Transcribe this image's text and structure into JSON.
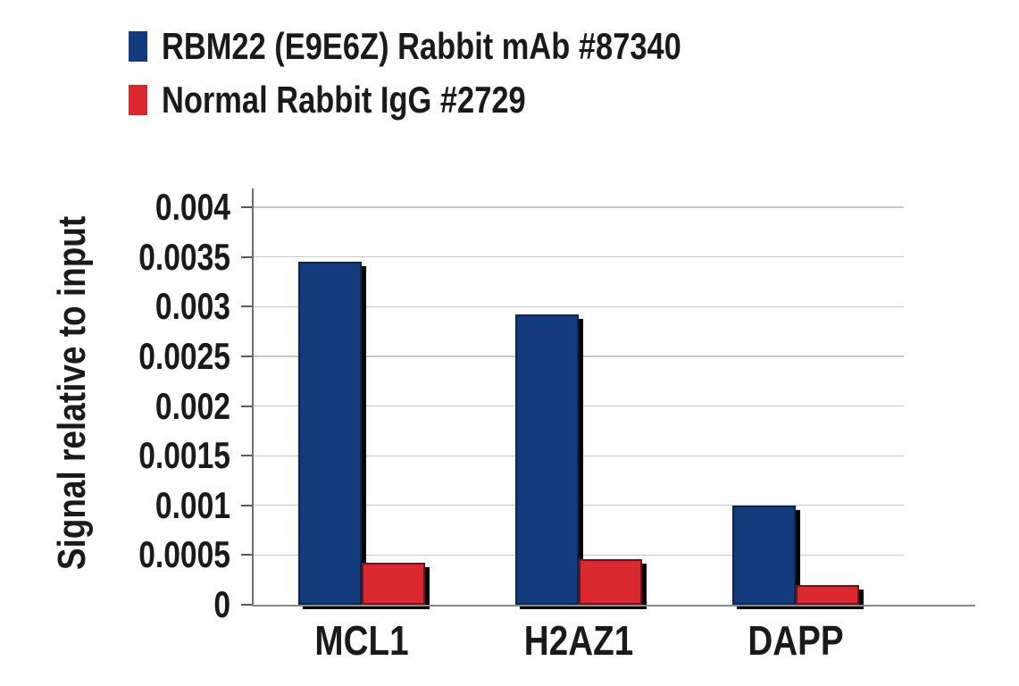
{
  "chart_data": {
    "type": "bar",
    "title": "",
    "xlabel": "",
    "ylabel": "Signal relative to input",
    "categories": [
      "MCL1",
      "H2AZ1",
      "DAPP"
    ],
    "series": [
      {
        "name": "RBM22 (E9E6Z) Rabbit mAb #87340",
        "color": "#123A7C",
        "border_color": "#0A2550",
        "values": [
          0.00345,
          0.00292,
          0.001
        ]
      },
      {
        "name": "Normal Rabbit IgG #2729",
        "color": "#D9282F",
        "border_color": "#6E1517",
        "values": [
          0.00042,
          0.00046,
          0.0002
        ]
      }
    ],
    "ylim": [
      0,
      0.004
    ],
    "yticks": [
      0,
      0.0005,
      0.001,
      0.0015,
      0.002,
      0.0025,
      0.003,
      0.0035,
      0.004
    ],
    "ytick_labels": [
      "0",
      "0.0005",
      "0.001",
      "0.0015",
      "0.002",
      "0.0025",
      "0.003",
      "0.0035",
      "0.004"
    ],
    "grid": true,
    "legend_position": "top-left",
    "gridline_color": "#C6C6C6",
    "y_axis_color": "#6E6E6E",
    "x_axis_color": "#8A8A8A",
    "tick_color": "#5A5A5A",
    "bar_shadow_color": "#060606",
    "text_color": "#1A1A1A",
    "background_color": "#FFFFFF"
  }
}
